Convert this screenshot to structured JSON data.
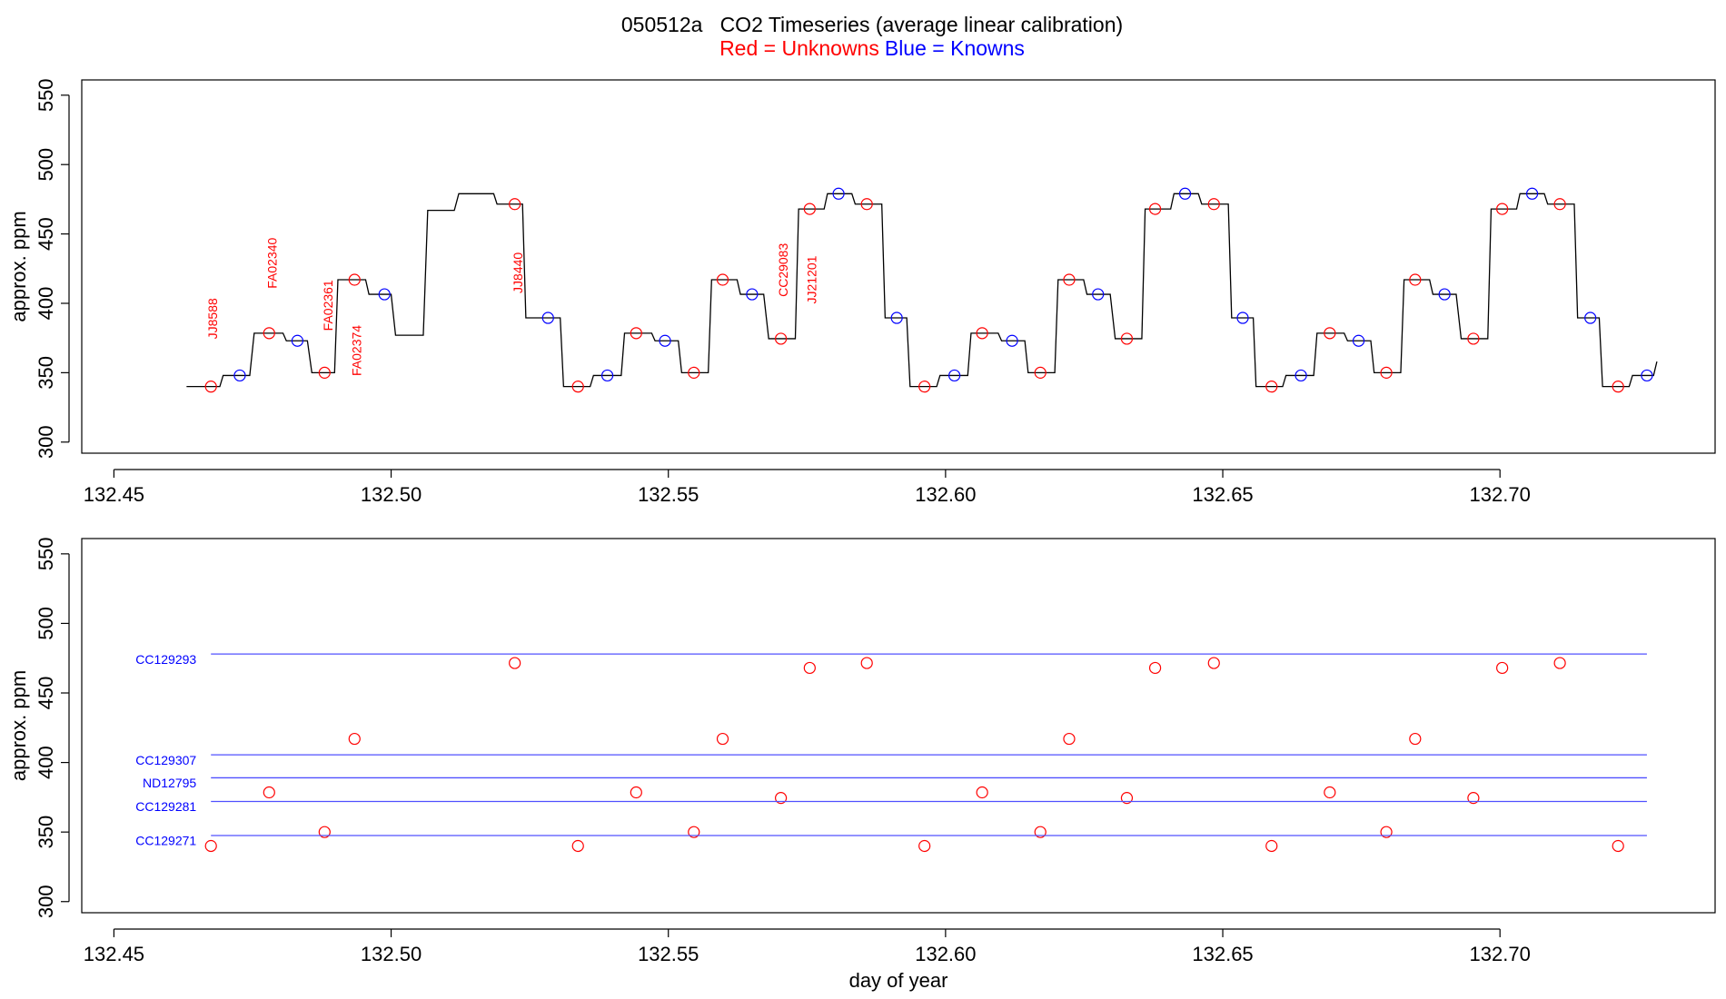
{
  "chart_data": [
    {
      "type": "line",
      "title": "050512a   CO2 Timeseries (average linear calibration)",
      "ylabel": "approx. ppm",
      "legend": "top",
      "xlim": [
        132.4442,
        132.7388
      ],
      "ylim": [
        292,
        561
      ],
      "xticks": [
        132.45,
        {
          "value": 132.5,
          "label": "132.50"
        },
        132.55,
        {
          "value": 132.6,
          "label": "132.60"
        },
        132.65,
        {
          "value": 132.7,
          "label": "132.70"
        }
      ],
      "yticks": [
        300,
        350,
        400,
        450,
        500,
        550
      ],
      "series": [
        {
          "type": "line",
          "color": "#000000",
          "x": [
            132.4631,
            132.4691,
            132.4697,
            132.4745,
            132.4753,
            132.4805,
            132.4811,
            132.4849,
            132.4857,
            132.4898,
            132.4904,
            132.4954,
            132.496,
            132.5,
            132.5008,
            132.5058,
            132.5066,
            132.5114,
            132.5122,
            132.5185,
            132.5191,
            132.5237,
            132.5243,
            132.5305,
            132.5311,
            132.5359,
            132.5365,
            132.5415,
            132.5421,
            132.547,
            132.5476,
            132.5518,
            132.5524,
            132.5572,
            132.5578,
            132.5624,
            132.563,
            132.5672,
            132.5681,
            132.5729,
            132.5735,
            132.5781,
            132.5787,
            132.5831,
            132.5837,
            132.5885,
            132.5891,
            132.593,
            132.5936,
            132.5984,
            132.599,
            132.604,
            132.6046,
            132.6095,
            132.6101,
            132.6143,
            132.6149,
            132.6197,
            132.6203,
            132.6249,
            132.6255,
            132.6297,
            132.6306,
            132.6354,
            132.636,
            132.6406,
            132.6412,
            132.6456,
            132.6462,
            132.651,
            132.6516,
            132.6555,
            132.656,
            132.6608,
            132.6614,
            132.6664,
            132.667,
            132.6719,
            132.6725,
            132.6767,
            132.6773,
            132.6821,
            132.6827,
            132.6873,
            132.6879,
            132.6921,
            132.693,
            132.6978,
            132.6984,
            132.703,
            132.7036,
            132.708,
            132.7086,
            132.7134,
            132.714,
            132.7179,
            132.7185,
            132.7233,
            132.7239,
            132.7277,
            132.7283
          ],
          "values": [
            340,
            340,
            348,
            348,
            378.5,
            378.5,
            373,
            373,
            350,
            350,
            417,
            417,
            406.5,
            406.5,
            377,
            377,
            467,
            467,
            479,
            479,
            471.5,
            471.5,
            389.5,
            389.5,
            340,
            340,
            348,
            348,
            378.5,
            378.5,
            373,
            373,
            350,
            350,
            417,
            417,
            406.5,
            406.5,
            374.5,
            374.5,
            468,
            468,
            479,
            479,
            471.5,
            471.5,
            389.5,
            389.5,
            340,
            340,
            348,
            348,
            378.5,
            378.5,
            373,
            373,
            350,
            350,
            417,
            417,
            406.5,
            406.5,
            374.5,
            374.5,
            468,
            468,
            479,
            479,
            471.5,
            471.5,
            389.5,
            389.5,
            340,
            340,
            348,
            348,
            378.5,
            378.5,
            373,
            373,
            350,
            350,
            417,
            417,
            406.5,
            406.5,
            374.5,
            374.5,
            468,
            468,
            479,
            479,
            471.5,
            471.5,
            389.5,
            389.5,
            340,
            340,
            348,
            348,
            358
          ]
        },
        {
          "type": "scatter",
          "name": "Red = Unknowns",
          "color": "#ff0000",
          "x": [
            132.4675,
            132.478,
            132.488,
            132.4934,
            132.5223,
            132.5337,
            132.5442,
            132.5546,
            132.5598,
            132.5703,
            132.5755,
            132.5858,
            132.5962,
            132.6066,
            132.6171,
            132.6223,
            132.6327,
            132.6378,
            132.6484,
            132.6588,
            132.6693,
            132.6795,
            132.6847,
            132.6952,
            132.7004,
            132.7108,
            132.7213
          ],
          "values": [
            340,
            378.5,
            350,
            417,
            471.5,
            340,
            378.5,
            350,
            417,
            374.5,
            468,
            471.5,
            340,
            378.5,
            350,
            417,
            374.5,
            468,
            471.5,
            340,
            378.5,
            350,
            417,
            374.5,
            468,
            471.5,
            340
          ]
        },
        {
          "type": "scatter",
          "name": "Blue = Knowns",
          "color": "#0000ff",
          "x": [
            132.4727,
            132.4831,
            132.4988,
            132.5283,
            132.539,
            132.5494,
            132.5651,
            132.5807,
            132.5912,
            132.6016,
            132.612,
            132.6275,
            132.6432,
            132.6536,
            132.6641,
            132.6745,
            132.69,
            132.7058,
            132.7163,
            132.7265
          ],
          "values": [
            348,
            373,
            406.5,
            389.5,
            348,
            373,
            406.5,
            479,
            389.5,
            348,
            373,
            406.5,
            479,
            389.5,
            348,
            373,
            406.5,
            479,
            389.5,
            348
          ]
        }
      ],
      "annotations": [
        {
          "text": "JJ8588",
          "x": 132.468,
          "y": 389,
          "color": "#ff0000"
        },
        {
          "text": "FA02340",
          "x": 132.4787,
          "y": 429,
          "color": "#ff0000"
        },
        {
          "text": "FA02361",
          "x": 132.4888,
          "y": 398.5,
          "color": "#ff0000"
        },
        {
          "text": "FA02374",
          "x": 132.494,
          "y": 366,
          "color": "#ff0000"
        },
        {
          "text": "JJ8440",
          "x": 132.5231,
          "y": 422,
          "color": "#ff0000"
        },
        {
          "text": "CC29083",
          "x": 132.5709,
          "y": 424,
          "color": "#ff0000"
        },
        {
          "text": "JJ21201",
          "x": 132.5761,
          "y": 417,
          "color": "#ff0000"
        }
      ]
    },
    {
      "type": "scatter",
      "ylabel": "approx. ppm",
      "xlabel": "day of year",
      "legend": "left",
      "xlim": [
        132.4442,
        132.7388
      ],
      "ylim": [
        292,
        561
      ],
      "xticks": [
        132.45,
        {
          "value": 132.5,
          "label": "132.50"
        },
        132.55,
        {
          "value": 132.6,
          "label": "132.60"
        },
        132.65,
        {
          "value": 132.7,
          "label": "132.70"
        }
      ],
      "yticks": [
        300,
        350,
        400,
        450,
        500,
        550
      ],
      "series": [
        {
          "type": "scatter",
          "color": "#ff0000",
          "x": [
            132.4675,
            132.478,
            132.488,
            132.4934,
            132.5223,
            132.5337,
            132.5442,
            132.5546,
            132.5598,
            132.5703,
            132.5755,
            132.5858,
            132.5962,
            132.6066,
            132.6171,
            132.6223,
            132.6327,
            132.6378,
            132.6484,
            132.6588,
            132.6693,
            132.6795,
            132.6847,
            132.6952,
            132.7004,
            132.7108,
            132.7213
          ],
          "values": [
            340,
            378.5,
            350,
            417,
            471.5,
            340,
            378.5,
            350,
            417,
            374.5,
            468,
            471.5,
            340,
            378.5,
            350,
            417,
            374.5,
            468,
            471.5,
            340,
            378.5,
            350,
            417,
            374.5,
            468,
            471.5,
            340
          ]
        },
        {
          "type": "line",
          "name": "CC129293",
          "color": "#5050ff",
          "x": [
            132.4675,
            132.7265
          ],
          "values": [
            478,
            478
          ]
        },
        {
          "type": "line",
          "name": "CC129307",
          "color": "#5050ff",
          "x": [
            132.4675,
            132.7265
          ],
          "values": [
            405.5,
            405.5
          ]
        },
        {
          "type": "line",
          "name": "ND12795",
          "color": "#5050ff",
          "x": [
            132.4675,
            132.7265
          ],
          "values": [
            389,
            389
          ]
        },
        {
          "type": "line",
          "name": "CC129281",
          "color": "#5050ff",
          "x": [
            132.4675,
            132.7265
          ],
          "values": [
            372,
            372
          ]
        },
        {
          "type": "line",
          "name": "CC129271",
          "color": "#5050ff",
          "x": [
            132.4675,
            132.7265
          ],
          "values": [
            347.5,
            347.5
          ]
        }
      ]
    }
  ]
}
